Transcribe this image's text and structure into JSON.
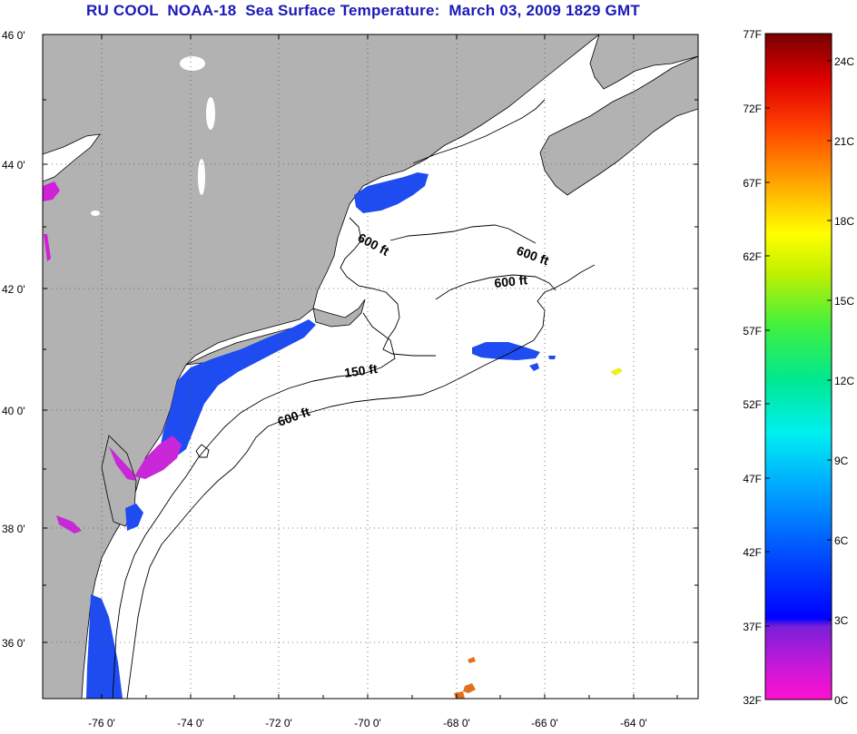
{
  "title": "RU COOL  NOAA-18  Sea Surface Temperature:  March 03, 2009 1829 GMT",
  "map": {
    "lat_labels": [
      "46 0'",
      "44 0'",
      "42 0'",
      "40 0'",
      "38 0'",
      "36 0'"
    ],
    "lon_labels": [
      "-76 0'",
      "-74 0'",
      "-72 0'",
      "-70 0'",
      "-68 0'",
      "-66 0'",
      "-64 0'"
    ],
    "lat_range": [
      35,
      46
    ],
    "lon_range": [
      -77,
      -63
    ],
    "contour_labels": [
      "600 ft",
      "600 ft",
      "600 ft",
      "150 ft",
      "600 ft"
    ],
    "colors": {
      "land": "#b2b2b2",
      "water": "#ffffff",
      "coast": "#000000",
      "sst_blue": "#1f4cf0",
      "sst_magenta": "#d01ad8",
      "sst_pink": "#ff28c8",
      "sst_orange": "#e07020",
      "sst_yellow": "#f0f020"
    }
  },
  "colorbar": {
    "fahrenheit_labels": [
      "77F",
      "72F",
      "67F",
      "62F",
      "57F",
      "52F",
      "47F",
      "42F",
      "37F",
      "32F"
    ],
    "celsius_labels": [
      "24C",
      "21C",
      "18C",
      "15C",
      "12C",
      "9C",
      "6C",
      "3C",
      "0C"
    ],
    "f_range": [
      32,
      77
    ],
    "c_range": [
      0,
      25
    ],
    "stops": [
      "#ff00c8",
      "#8c20d8",
      "#0000ff",
      "#0090ff",
      "#00e8e8",
      "#00e080",
      "#a0f000",
      "#ffff00",
      "#ff9000",
      "#ff2000",
      "#c00000",
      "#7a0000"
    ]
  }
}
